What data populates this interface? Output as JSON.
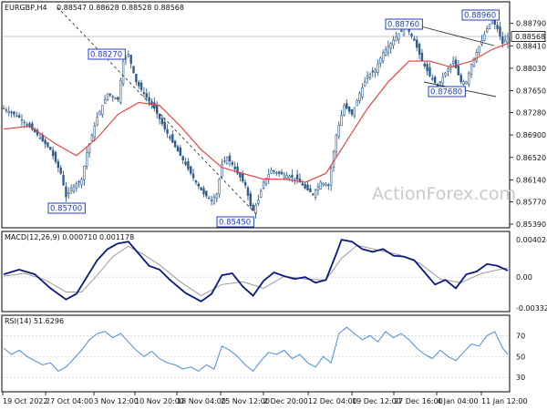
{
  "chart_data": [
    {
      "type": "candlestick",
      "title": "EURGBP,H4",
      "ohlc_readout": "0.88547 0.88628 0.88528 0.88568",
      "current_price": "0.88568",
      "ylim": [
        0.8539,
        0.8897
      ],
      "y_ticks": [
        "0.88790",
        "0.88410",
        "0.88030",
        "0.87650",
        "0.87280",
        "0.86900",
        "0.86520",
        "0.86140",
        "0.85770",
        "0.85390"
      ],
      "x_ticks": [
        "19 Oct 2022",
        "27 Oct 04:00",
        "3 Nov 12:00",
        "10 Nov 20:00",
        "18 Nov 04:00",
        "25 Nov 12:00",
        "2 Dec 20:00",
        "12 Dec 04:00",
        "19 Dec 12:00",
        "27 Dec 16:00",
        "4 Jan 04:00",
        "11 Jan 12:00"
      ],
      "price_path": [
        [
          0,
          0.8735
        ],
        [
          6,
          0.872
        ],
        [
          12,
          0.8695
        ],
        [
          18,
          0.8665
        ],
        [
          22,
          0.8625
        ],
        [
          24,
          0.8585
        ],
        [
          26,
          0.86
        ],
        [
          30,
          0.8615
        ],
        [
          32,
          0.866
        ],
        [
          36,
          0.872
        ],
        [
          40,
          0.876
        ],
        [
          44,
          0.875
        ],
        [
          46,
          0.8815
        ],
        [
          48,
          0.8827
        ],
        [
          51,
          0.878
        ],
        [
          54,
          0.876
        ],
        [
          58,
          0.8735
        ],
        [
          62,
          0.87
        ],
        [
          66,
          0.867
        ],
        [
          70,
          0.864
        ],
        [
          74,
          0.861
        ],
        [
          77,
          0.859
        ],
        [
          80,
          0.858
        ],
        [
          82,
          0.859
        ],
        [
          84,
          0.864
        ],
        [
          86,
          0.8652
        ],
        [
          88,
          0.864
        ],
        [
          90,
          0.8625
        ],
        [
          93,
          0.8605
        ],
        [
          95,
          0.857
        ],
        [
          96,
          0.8562
        ],
        [
          98,
          0.858
        ],
        [
          100,
          0.861
        ],
        [
          103,
          0.863
        ],
        [
          106,
          0.8625
        ],
        [
          110,
          0.862
        ],
        [
          113,
          0.8615
        ],
        [
          116,
          0.86
        ],
        [
          119,
          0.859
        ],
        [
          122,
          0.861
        ],
        [
          125,
          0.8605
        ],
        [
          128,
          0.869
        ],
        [
          131,
          0.874
        ],
        [
          134,
          0.8725
        ],
        [
          137,
          0.876
        ],
        [
          140,
          0.879
        ],
        [
          143,
          0.88
        ],
        [
          146,
          0.883
        ],
        [
          149,
          0.8845
        ],
        [
          152,
          0.8862
        ],
        [
          155,
          0.8873
        ],
        [
          158,
          0.885
        ],
        [
          161,
          0.8815
        ],
        [
          164,
          0.879
        ],
        [
          167,
          0.8773
        ],
        [
          170,
          0.8795
        ],
        [
          173,
          0.8815
        ],
        [
          176,
          0.878
        ],
        [
          178,
          0.878
        ],
        [
          180,
          0.881
        ],
        [
          183,
          0.884
        ],
        [
          186,
          0.887
        ],
        [
          188,
          0.8885
        ],
        [
          190,
          0.887
        ],
        [
          192,
          0.8845
        ],
        [
          194,
          0.8857
        ]
      ],
      "moving_average": [
        [
          0,
          0.87
        ],
        [
          10,
          0.8705
        ],
        [
          20,
          0.8675
        ],
        [
          28,
          0.8655
        ],
        [
          36,
          0.8685
        ],
        [
          44,
          0.8725
        ],
        [
          52,
          0.8745
        ],
        [
          60,
          0.874
        ],
        [
          68,
          0.8705
        ],
        [
          76,
          0.8665
        ],
        [
          84,
          0.8635
        ],
        [
          92,
          0.8625
        ],
        [
          100,
          0.8615
        ],
        [
          108,
          0.8615
        ],
        [
          116,
          0.861
        ],
        [
          124,
          0.8625
        ],
        [
          132,
          0.868
        ],
        [
          140,
          0.8735
        ],
        [
          148,
          0.878
        ],
        [
          156,
          0.8815
        ],
        [
          164,
          0.8815
        ],
        [
          172,
          0.8805
        ],
        [
          180,
          0.8815
        ],
        [
          188,
          0.8835
        ],
        [
          194,
          0.8845
        ]
      ],
      "annotations": [
        "0.88270",
        "0.85700",
        "0.85450",
        "0.88760",
        "0.88960",
        "0.87680"
      ],
      "watermark": "ActionForex.com",
      "colors": {
        "price": "#2f5c8a",
        "ma": "#e83a3a",
        "annotation": "#1f3fbf",
        "trendline": "#333333"
      }
    },
    {
      "type": "line",
      "title": "MACD(12,26,9) 0.000710 0.001178",
      "ylim": [
        -0.0035,
        0.0045
      ],
      "y_ticks": [
        "0.004024",
        "0.00",
        "-0.003326"
      ],
      "macd": [
        [
          0,
          0.0003
        ],
        [
          6,
          0.0008
        ],
        [
          12,
          0.0003
        ],
        [
          18,
          -0.0012
        ],
        [
          24,
          -0.0024
        ],
        [
          28,
          -0.0018
        ],
        [
          32,
          0.0
        ],
        [
          36,
          0.0018
        ],
        [
          40,
          0.003
        ],
        [
          44,
          0.0036
        ],
        [
          48,
          0.0038
        ],
        [
          52,
          0.0025
        ],
        [
          56,
          0.0012
        ],
        [
          60,
          0.0008
        ],
        [
          64,
          -0.0003
        ],
        [
          70,
          -0.0017
        ],
        [
          76,
          -0.0026
        ],
        [
          80,
          -0.0018
        ],
        [
          84,
          0.0002
        ],
        [
          88,
          0.0004
        ],
        [
          92,
          -0.001
        ],
        [
          96,
          -0.002
        ],
        [
          100,
          -0.0004
        ],
        [
          104,
          0.0005
        ],
        [
          108,
          0.0001
        ],
        [
          112,
          -0.0002
        ],
        [
          116,
          0.0
        ],
        [
          120,
          -0.0006
        ],
        [
          124,
          -0.0003
        ],
        [
          128,
          0.0025
        ],
        [
          130,
          0.004
        ],
        [
          134,
          0.0038
        ],
        [
          138,
          0.003
        ],
        [
          142,
          0.0027
        ],
        [
          146,
          0.003
        ],
        [
          150,
          0.0023
        ],
        [
          154,
          0.0022
        ],
        [
          158,
          0.0018
        ],
        [
          162,
          0.0005
        ],
        [
          166,
          -0.0008
        ],
        [
          170,
          -0.0003
        ],
        [
          174,
          -0.0012
        ],
        [
          178,
          0.0003
        ],
        [
          182,
          0.0006
        ],
        [
          186,
          0.0014
        ],
        [
          190,
          0.0012
        ],
        [
          194,
          0.0007
        ]
      ],
      "signal": [
        [
          0,
          0.0001
        ],
        [
          8,
          0.0004
        ],
        [
          16,
          -0.0003
        ],
        [
          24,
          -0.0016
        ],
        [
          30,
          -0.0016
        ],
        [
          36,
          0.0002
        ],
        [
          42,
          0.0022
        ],
        [
          48,
          0.0033
        ],
        [
          54,
          0.0024
        ],
        [
          60,
          0.0013
        ],
        [
          68,
          -0.0005
        ],
        [
          76,
          -0.002
        ],
        [
          84,
          -0.0008
        ],
        [
          92,
          -0.0005
        ],
        [
          100,
          -0.0012
        ],
        [
          108,
          0.0001
        ],
        [
          116,
          -0.0002
        ],
        [
          124,
          -0.0003
        ],
        [
          130,
          0.002
        ],
        [
          136,
          0.0034
        ],
        [
          144,
          0.0029
        ],
        [
          152,
          0.0024
        ],
        [
          160,
          0.0015
        ],
        [
          168,
          -0.0002
        ],
        [
          176,
          -0.0006
        ],
        [
          184,
          0.0004
        ],
        [
          194,
          0.001
        ]
      ],
      "colors": {
        "macd": "#0a1a80",
        "signal": "#9a9a9a"
      }
    },
    {
      "type": "line",
      "title": "RSI(14) 51.6296",
      "ylim": [
        18,
        86
      ],
      "y_ticks": [
        "70",
        "50",
        "30"
      ],
      "rsi": [
        [
          0,
          58
        ],
        [
          3,
          52
        ],
        [
          6,
          56
        ],
        [
          9,
          50
        ],
        [
          12,
          46
        ],
        [
          15,
          42
        ],
        [
          18,
          44
        ],
        [
          21,
          36
        ],
        [
          24,
          40
        ],
        [
          27,
          48
        ],
        [
          30,
          56
        ],
        [
          33,
          66
        ],
        [
          36,
          72
        ],
        [
          39,
          74
        ],
        [
          42,
          68
        ],
        [
          45,
          72
        ],
        [
          48,
          64
        ],
        [
          51,
          56
        ],
        [
          54,
          50
        ],
        [
          57,
          55
        ],
        [
          60,
          48
        ],
        [
          63,
          44
        ],
        [
          66,
          42
        ],
        [
          69,
          38
        ],
        [
          72,
          40
        ],
        [
          75,
          36
        ],
        [
          78,
          42
        ],
        [
          81,
          38
        ],
        [
          84,
          60
        ],
        [
          87,
          56
        ],
        [
          90,
          50
        ],
        [
          93,
          42
        ],
        [
          96,
          36
        ],
        [
          99,
          46
        ],
        [
          102,
          54
        ],
        [
          105,
          52
        ],
        [
          108,
          56
        ],
        [
          111,
          48
        ],
        [
          114,
          52
        ],
        [
          117,
          44
        ],
        [
          120,
          40
        ],
        [
          123,
          50
        ],
        [
          126,
          44
        ],
        [
          129,
          72
        ],
        [
          132,
          78
        ],
        [
          135,
          72
        ],
        [
          138,
          66
        ],
        [
          141,
          70
        ],
        [
          144,
          64
        ],
        [
          147,
          74
        ],
        [
          150,
          68
        ],
        [
          153,
          72
        ],
        [
          156,
          66
        ],
        [
          159,
          58
        ],
        [
          162,
          52
        ],
        [
          165,
          48
        ],
        [
          168,
          56
        ],
        [
          171,
          50
        ],
        [
          174,
          46
        ],
        [
          177,
          54
        ],
        [
          180,
          62
        ],
        [
          183,
          60
        ],
        [
          186,
          70
        ],
        [
          189,
          74
        ],
        [
          192,
          58
        ],
        [
          194,
          52
        ]
      ],
      "colors": {
        "rsi": "#4a8fd8"
      }
    }
  ]
}
